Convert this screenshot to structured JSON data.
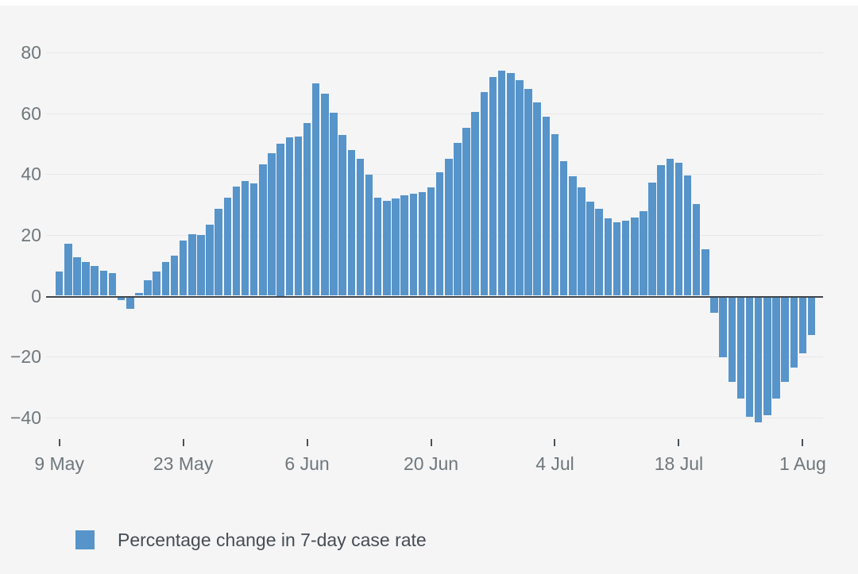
{
  "chart_data": {
    "type": "bar",
    "title": "",
    "xlabel": "",
    "ylabel": "",
    "legend_label": "Percentage change in 7-day case rate",
    "legend_position": "bottom-left",
    "bar_color": "#5694ca",
    "grid": "horizontal",
    "y_ticks": [
      80,
      60,
      40,
      20,
      0,
      -20,
      -40
    ],
    "ylim": [
      -46,
      84
    ],
    "x_tick_labels": [
      "9 May",
      "23 May",
      "6 Jun",
      "20 Jun",
      "4 Jul",
      "18 Jul",
      "1 Aug"
    ],
    "x_tick_indices": [
      0,
      14,
      28,
      42,
      56,
      70,
      84
    ],
    "x_start_label": "9 May",
    "x_end_label": "2 Aug",
    "x_frequency": "daily",
    "values": [
      8,
      17,
      12.6,
      11.2,
      9.7,
      8.3,
      7.5,
      -1,
      -3.8,
      1,
      5,
      8,
      11,
      13.1,
      18.1,
      20.3,
      20.1,
      23.5,
      28.7,
      32.3,
      35.8,
      37.7,
      37,
      43.2,
      46.8,
      50,
      52,
      52.5,
      56.7,
      70,
      66.5,
      60.1,
      52.8,
      48,
      45.1,
      39.9,
      32.2,
      31.2,
      31.9,
      33.1,
      33.7,
      34.2,
      35.6,
      40.7,
      45.1,
      50.4,
      55.2,
      60.6,
      67.1,
      71.9,
      74.1,
      73.2,
      71,
      68,
      63.5,
      58.8,
      53.1,
      44.4,
      39.4,
      35.7,
      31,
      28.6,
      25.5,
      24.1,
      24.6,
      25.8,
      27.7,
      37.2,
      43.1,
      45,
      43.8,
      39.6,
      30.1,
      15.4,
      -5.2,
      -19.6,
      -27.9,
      -33.2,
      -39.2,
      -41.1,
      -38.7,
      -33.2,
      -27.7,
      -23.2,
      -18.5,
      -12.4
    ]
  },
  "colors": {
    "background": "#f5f5f6",
    "top_strip": "#ffffff",
    "gridline": "#e7e8ea",
    "zero_axis_line": "#3f464d",
    "axis_label_text": "#6f777b",
    "legend_text": "#454c53",
    "bar": "#5694ca"
  }
}
